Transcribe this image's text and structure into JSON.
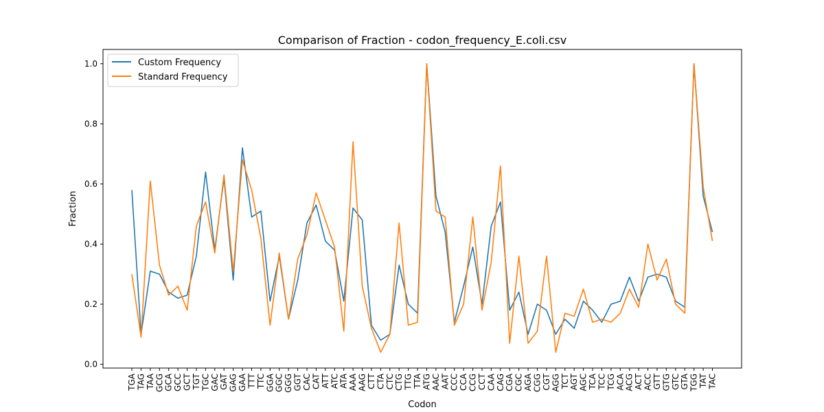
{
  "chart_data": {
    "type": "line",
    "title": "Comparison of Fraction - codon_frequency_E.coli.csv",
    "xlabel": "Codon",
    "ylabel": "Fraction",
    "ylim": [
      -0.0125,
      1.0475
    ],
    "yticks": [
      0.0,
      0.2,
      0.4,
      0.6,
      0.8,
      1.0
    ],
    "ytick_labels": [
      "0.0",
      "0.2",
      "0.4",
      "0.6",
      "0.8",
      "1.0"
    ],
    "grid": false,
    "legend_position": "top-left",
    "categories": [
      "TGA",
      "TAG",
      "TAA",
      "GCG",
      "GCA",
      "GCC",
      "GCT",
      "TGT",
      "TGC",
      "GAC",
      "GAT",
      "GAG",
      "GAA",
      "TTT",
      "TTC",
      "GGA",
      "GGC",
      "GGG",
      "GGT",
      "CAC",
      "CAT",
      "ATT",
      "ATC",
      "ATA",
      "AAA",
      "AAG",
      "CTT",
      "CTA",
      "CTC",
      "CTG",
      "TTG",
      "TTA",
      "ATG",
      "AAC",
      "AAT",
      "CCC",
      "CCA",
      "CCG",
      "CCT",
      "CAA",
      "CAG",
      "CGA",
      "CGC",
      "AGA",
      "CGG",
      "CGT",
      "AGG",
      "TCT",
      "AGT",
      "AGC",
      "TCA",
      "TCC",
      "TCG",
      "ACA",
      "ACG",
      "ACT",
      "ACC",
      "GTT",
      "GTG",
      "GTC",
      "GTA",
      "TGG",
      "TAT",
      "TAC"
    ],
    "series": [
      {
        "name": "Custom Frequency",
        "color": "#1f77b4",
        "values": [
          0.58,
          0.1,
          0.31,
          0.3,
          0.24,
          0.22,
          0.23,
          0.36,
          0.64,
          0.38,
          0.62,
          0.28,
          0.72,
          0.49,
          0.51,
          0.21,
          0.36,
          0.15,
          0.28,
          0.47,
          0.53,
          0.41,
          0.38,
          0.21,
          0.52,
          0.48,
          0.13,
          0.08,
          0.1,
          0.33,
          0.2,
          0.17,
          1.0,
          0.56,
          0.44,
          0.14,
          0.26,
          0.39,
          0.2,
          0.46,
          0.54,
          0.18,
          0.24,
          0.1,
          0.2,
          0.18,
          0.1,
          0.15,
          0.12,
          0.21,
          0.18,
          0.14,
          0.2,
          0.21,
          0.29,
          0.21,
          0.29,
          0.3,
          0.29,
          0.21,
          0.19,
          1.0,
          0.56,
          0.44
        ]
      },
      {
        "name": "Standard Frequency",
        "color": "#ff7f0e",
        "values": [
          0.3,
          0.09,
          0.61,
          0.33,
          0.23,
          0.26,
          0.18,
          0.46,
          0.54,
          0.37,
          0.63,
          0.31,
          0.68,
          0.58,
          0.42,
          0.13,
          0.37,
          0.15,
          0.35,
          0.43,
          0.57,
          0.48,
          0.39,
          0.11,
          0.74,
          0.26,
          0.12,
          0.04,
          0.1,
          0.47,
          0.13,
          0.14,
          1.0,
          0.51,
          0.49,
          0.13,
          0.2,
          0.49,
          0.18,
          0.34,
          0.66,
          0.07,
          0.36,
          0.07,
          0.11,
          0.36,
          0.04,
          0.17,
          0.16,
          0.25,
          0.14,
          0.15,
          0.14,
          0.17,
          0.25,
          0.19,
          0.4,
          0.28,
          0.35,
          0.2,
          0.17,
          1.0,
          0.59,
          0.41
        ]
      }
    ]
  }
}
